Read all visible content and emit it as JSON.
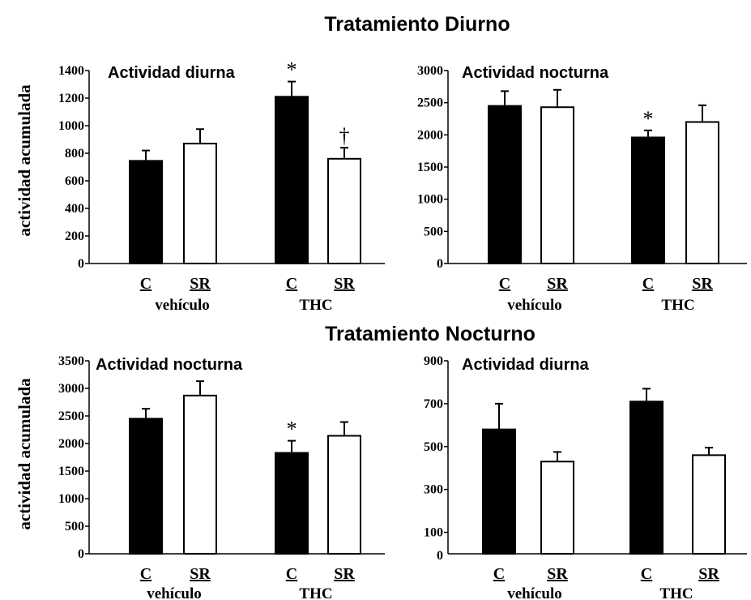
{
  "sections": [
    {
      "title": "Tratamiento Diurno"
    },
    {
      "title": "Tratamiento Nocturno"
    }
  ],
  "ylabel": "actividad acumulada",
  "chart_data": [
    {
      "type": "bar",
      "title": "Actividad diurna",
      "section": "Tratamiento Diurno",
      "ylabel": "actividad acumulada",
      "ylim": [
        0,
        1400
      ],
      "yticks": [
        0,
        200,
        400,
        600,
        800,
        1000,
        1200,
        1400
      ],
      "categories": [
        "C",
        "SR",
        "C",
        "SR"
      ],
      "groups": [
        "vehículo",
        "THC"
      ],
      "bar_colors": [
        "#000000",
        "#ffffff",
        "#000000",
        "#ffffff"
      ],
      "values": [
        745,
        870,
        1210,
        760
      ],
      "errors": [
        75,
        105,
        110,
        80
      ],
      "annotations": [
        "",
        "",
        "*",
        "†"
      ]
    },
    {
      "type": "bar",
      "title": "Actividad nocturna",
      "section": "Tratamiento Diurno",
      "ylabel": "",
      "ylim": [
        0,
        3000
      ],
      "yticks": [
        0,
        500,
        1000,
        1500,
        2000,
        2500,
        3000
      ],
      "categories": [
        "C",
        "SR",
        "C",
        "SR"
      ],
      "groups": [
        "vehículo",
        "THC"
      ],
      "bar_colors": [
        "#000000",
        "#ffffff",
        "#000000",
        "#ffffff"
      ],
      "values": [
        2450,
        2430,
        1960,
        2200
      ],
      "errors": [
        230,
        270,
        110,
        260
      ],
      "annotations": [
        "",
        "",
        "*",
        ""
      ]
    },
    {
      "type": "bar",
      "title": "Actividad nocturna",
      "section": "Tratamiento Nocturno",
      "ylabel": "actividad acumulada",
      "ylim": [
        0,
        3500
      ],
      "yticks": [
        0,
        500,
        1000,
        1500,
        2000,
        2500,
        3000,
        3500
      ],
      "categories": [
        "C",
        "SR",
        "C",
        "SR"
      ],
      "groups": [
        "vehículo",
        "THC"
      ],
      "bar_colors": [
        "#000000",
        "#ffffff",
        "#000000",
        "#ffffff"
      ],
      "values": [
        2450,
        2870,
        1830,
        2140
      ],
      "errors": [
        180,
        260,
        220,
        250
      ],
      "annotations": [
        "",
        "",
        "*",
        ""
      ]
    },
    {
      "type": "bar",
      "title": "Actividad diurna",
      "section": "Tratamiento Nocturno",
      "ylabel": "",
      "ylim": [
        0,
        900
      ],
      "yticks": [
        100,
        300,
        500,
        700,
        900
      ],
      "extra_ytick_label": "0",
      "categories": [
        "C",
        "SR",
        "C",
        "SR"
      ],
      "groups": [
        "vehículo",
        "THC"
      ],
      "bar_colors": [
        "#000000",
        "#ffffff",
        "#000000",
        "#ffffff"
      ],
      "values": [
        580,
        430,
        710,
        460
      ],
      "errors": [
        120,
        45,
        60,
        35
      ],
      "annotations": [
        "",
        "",
        "",
        ""
      ]
    }
  ]
}
